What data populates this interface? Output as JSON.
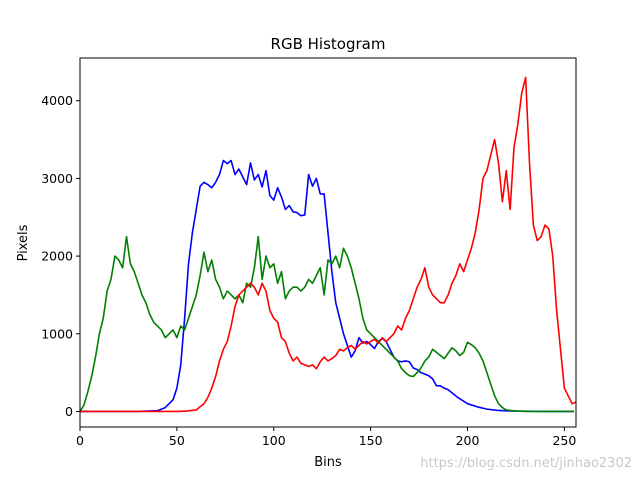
{
  "chart_data": {
    "type": "line",
    "title": "RGB Histogram",
    "xlabel": "Bins",
    "ylabel": "Pixels",
    "xlim": [
      0,
      256
    ],
    "ylim": [
      -200,
      4550
    ],
    "x_ticks": [
      0,
      50,
      100,
      150,
      200,
      250
    ],
    "y_ticks": [
      0,
      1000,
      2000,
      3000,
      4000
    ],
    "grid": false,
    "legend": "none",
    "series": [
      {
        "color": "#0000ff",
        "x": [
          0,
          10,
          20,
          30,
          40,
          44,
          48,
          50,
          52,
          54,
          56,
          58,
          60,
          62,
          64,
          66,
          68,
          70,
          72,
          74,
          76,
          78,
          80,
          82,
          84,
          86,
          88,
          90,
          92,
          94,
          96,
          98,
          100,
          102,
          104,
          106,
          108,
          110,
          112,
          114,
          116,
          118,
          120,
          122,
          124,
          126,
          128,
          130,
          132,
          134,
          136,
          138,
          140,
          142,
          144,
          146,
          148,
          150,
          152,
          154,
          156,
          158,
          160,
          162,
          164,
          166,
          168,
          170,
          172,
          174,
          176,
          178,
          180,
          182,
          184,
          186,
          188,
          190,
          195,
          200,
          205,
          210,
          215,
          220,
          225,
          230,
          240,
          255
        ],
        "values": [
          0,
          0,
          0,
          0,
          10,
          50,
          150,
          300,
          600,
          1200,
          1900,
          2300,
          2600,
          2900,
          2950,
          2920,
          2880,
          2950,
          3050,
          3230,
          3190,
          3230,
          3050,
          3120,
          3020,
          2920,
          3200,
          2980,
          3050,
          2890,
          3100,
          2780,
          2720,
          2880,
          2760,
          2600,
          2650,
          2570,
          2560,
          2520,
          2530,
          3050,
          2900,
          3000,
          2800,
          2800,
          2300,
          1800,
          1400,
          1200,
          1000,
          850,
          700,
          780,
          950,
          880,
          900,
          860,
          810,
          900,
          940,
          900,
          800,
          700,
          650,
          640,
          650,
          640,
          560,
          540,
          500,
          480,
          460,
          420,
          330,
          330,
          300,
          280,
          180,
          100,
          60,
          30,
          15,
          8,
          5,
          3,
          1,
          0
        ]
      },
      {
        "color": "#008000",
        "x": [
          0,
          2,
          4,
          6,
          8,
          10,
          12,
          14,
          16,
          18,
          20,
          22,
          24,
          26,
          28,
          30,
          32,
          34,
          36,
          38,
          40,
          42,
          44,
          46,
          48,
          50,
          52,
          54,
          56,
          58,
          60,
          62,
          64,
          66,
          68,
          70,
          72,
          74,
          76,
          78,
          80,
          82,
          84,
          86,
          88,
          90,
          92,
          94,
          96,
          98,
          100,
          102,
          104,
          106,
          108,
          110,
          112,
          114,
          116,
          118,
          120,
          122,
          124,
          126,
          128,
          130,
          132,
          134,
          136,
          138,
          140,
          142,
          144,
          146,
          148,
          150,
          152,
          154,
          156,
          158,
          160,
          162,
          164,
          166,
          168,
          170,
          172,
          174,
          176,
          178,
          180,
          182,
          184,
          186,
          188,
          190,
          192,
          194,
          196,
          198,
          200,
          202,
          204,
          206,
          208,
          210,
          212,
          214,
          216,
          218,
          220,
          225,
          230,
          240,
          255
        ],
        "values": [
          0,
          80,
          250,
          450,
          700,
          1000,
          1200,
          1550,
          1700,
          2000,
          1950,
          1850,
          2250,
          1900,
          1800,
          1650,
          1500,
          1400,
          1250,
          1150,
          1100,
          1050,
          950,
          1000,
          1050,
          950,
          1100,
          1050,
          1200,
          1350,
          1500,
          1750,
          2050,
          1800,
          1950,
          1700,
          1600,
          1450,
          1550,
          1500,
          1450,
          1500,
          1400,
          1650,
          1600,
          1850,
          2250,
          1700,
          2000,
          1850,
          1900,
          1650,
          1800,
          1450,
          1550,
          1600,
          1600,
          1550,
          1600,
          1700,
          1650,
          1750,
          1850,
          1500,
          1950,
          1900,
          2000,
          1850,
          2100,
          2000,
          1850,
          1650,
          1450,
          1200,
          1050,
          1000,
          950,
          900,
          850,
          800,
          750,
          700,
          650,
          550,
          500,
          460,
          450,
          500,
          560,
          650,
          700,
          800,
          760,
          720,
          680,
          750,
          820,
          780,
          720,
          760,
          890,
          860,
          820,
          750,
          650,
          500,
          350,
          200,
          100,
          50,
          20,
          5,
          0,
          0,
          0
        ]
      },
      {
        "color": "#ff0000",
        "x": [
          0,
          10,
          20,
          30,
          40,
          50,
          55,
          60,
          62,
          64,
          66,
          68,
          70,
          72,
          74,
          76,
          78,
          80,
          82,
          84,
          86,
          88,
          90,
          92,
          94,
          96,
          98,
          100,
          102,
          104,
          106,
          108,
          110,
          112,
          114,
          116,
          118,
          120,
          122,
          124,
          126,
          128,
          130,
          132,
          134,
          136,
          138,
          140,
          142,
          144,
          146,
          148,
          150,
          152,
          154,
          156,
          158,
          160,
          162,
          164,
          166,
          168,
          170,
          172,
          174,
          176,
          178,
          180,
          182,
          184,
          186,
          188,
          190,
          192,
          194,
          196,
          198,
          200,
          202,
          204,
          206,
          208,
          210,
          212,
          214,
          216,
          218,
          220,
          222,
          224,
          226,
          228,
          230,
          232,
          234,
          236,
          238,
          240,
          242,
          244,
          246,
          248,
          250,
          252,
          254,
          256
        ],
        "values": [
          0,
          0,
          0,
          0,
          0,
          0,
          5,
          20,
          60,
          100,
          180,
          300,
          450,
          650,
          800,
          900,
          1100,
          1350,
          1500,
          1550,
          1600,
          1650,
          1600,
          1500,
          1650,
          1550,
          1300,
          1200,
          1150,
          950,
          900,
          750,
          650,
          700,
          620,
          600,
          580,
          600,
          550,
          640,
          700,
          650,
          680,
          720,
          800,
          780,
          820,
          850,
          800,
          850,
          900,
          870,
          900,
          930,
          880,
          950,
          900,
          950,
          1000,
          1100,
          1050,
          1200,
          1300,
          1450,
          1600,
          1700,
          1850,
          1600,
          1500,
          1450,
          1400,
          1400,
          1500,
          1650,
          1750,
          1900,
          1800,
          1950,
          2100,
          2300,
          2600,
          3000,
          3100,
          3300,
          3500,
          3200,
          2700,
          3100,
          2600,
          3400,
          3700,
          4100,
          4300,
          3200,
          2400,
          2200,
          2250,
          2400,
          2350,
          2000,
          1300,
          800,
          300,
          200,
          100,
          120
        ]
      }
    ]
  },
  "watermark": "https://blog.csdn.net/jinhao2302"
}
